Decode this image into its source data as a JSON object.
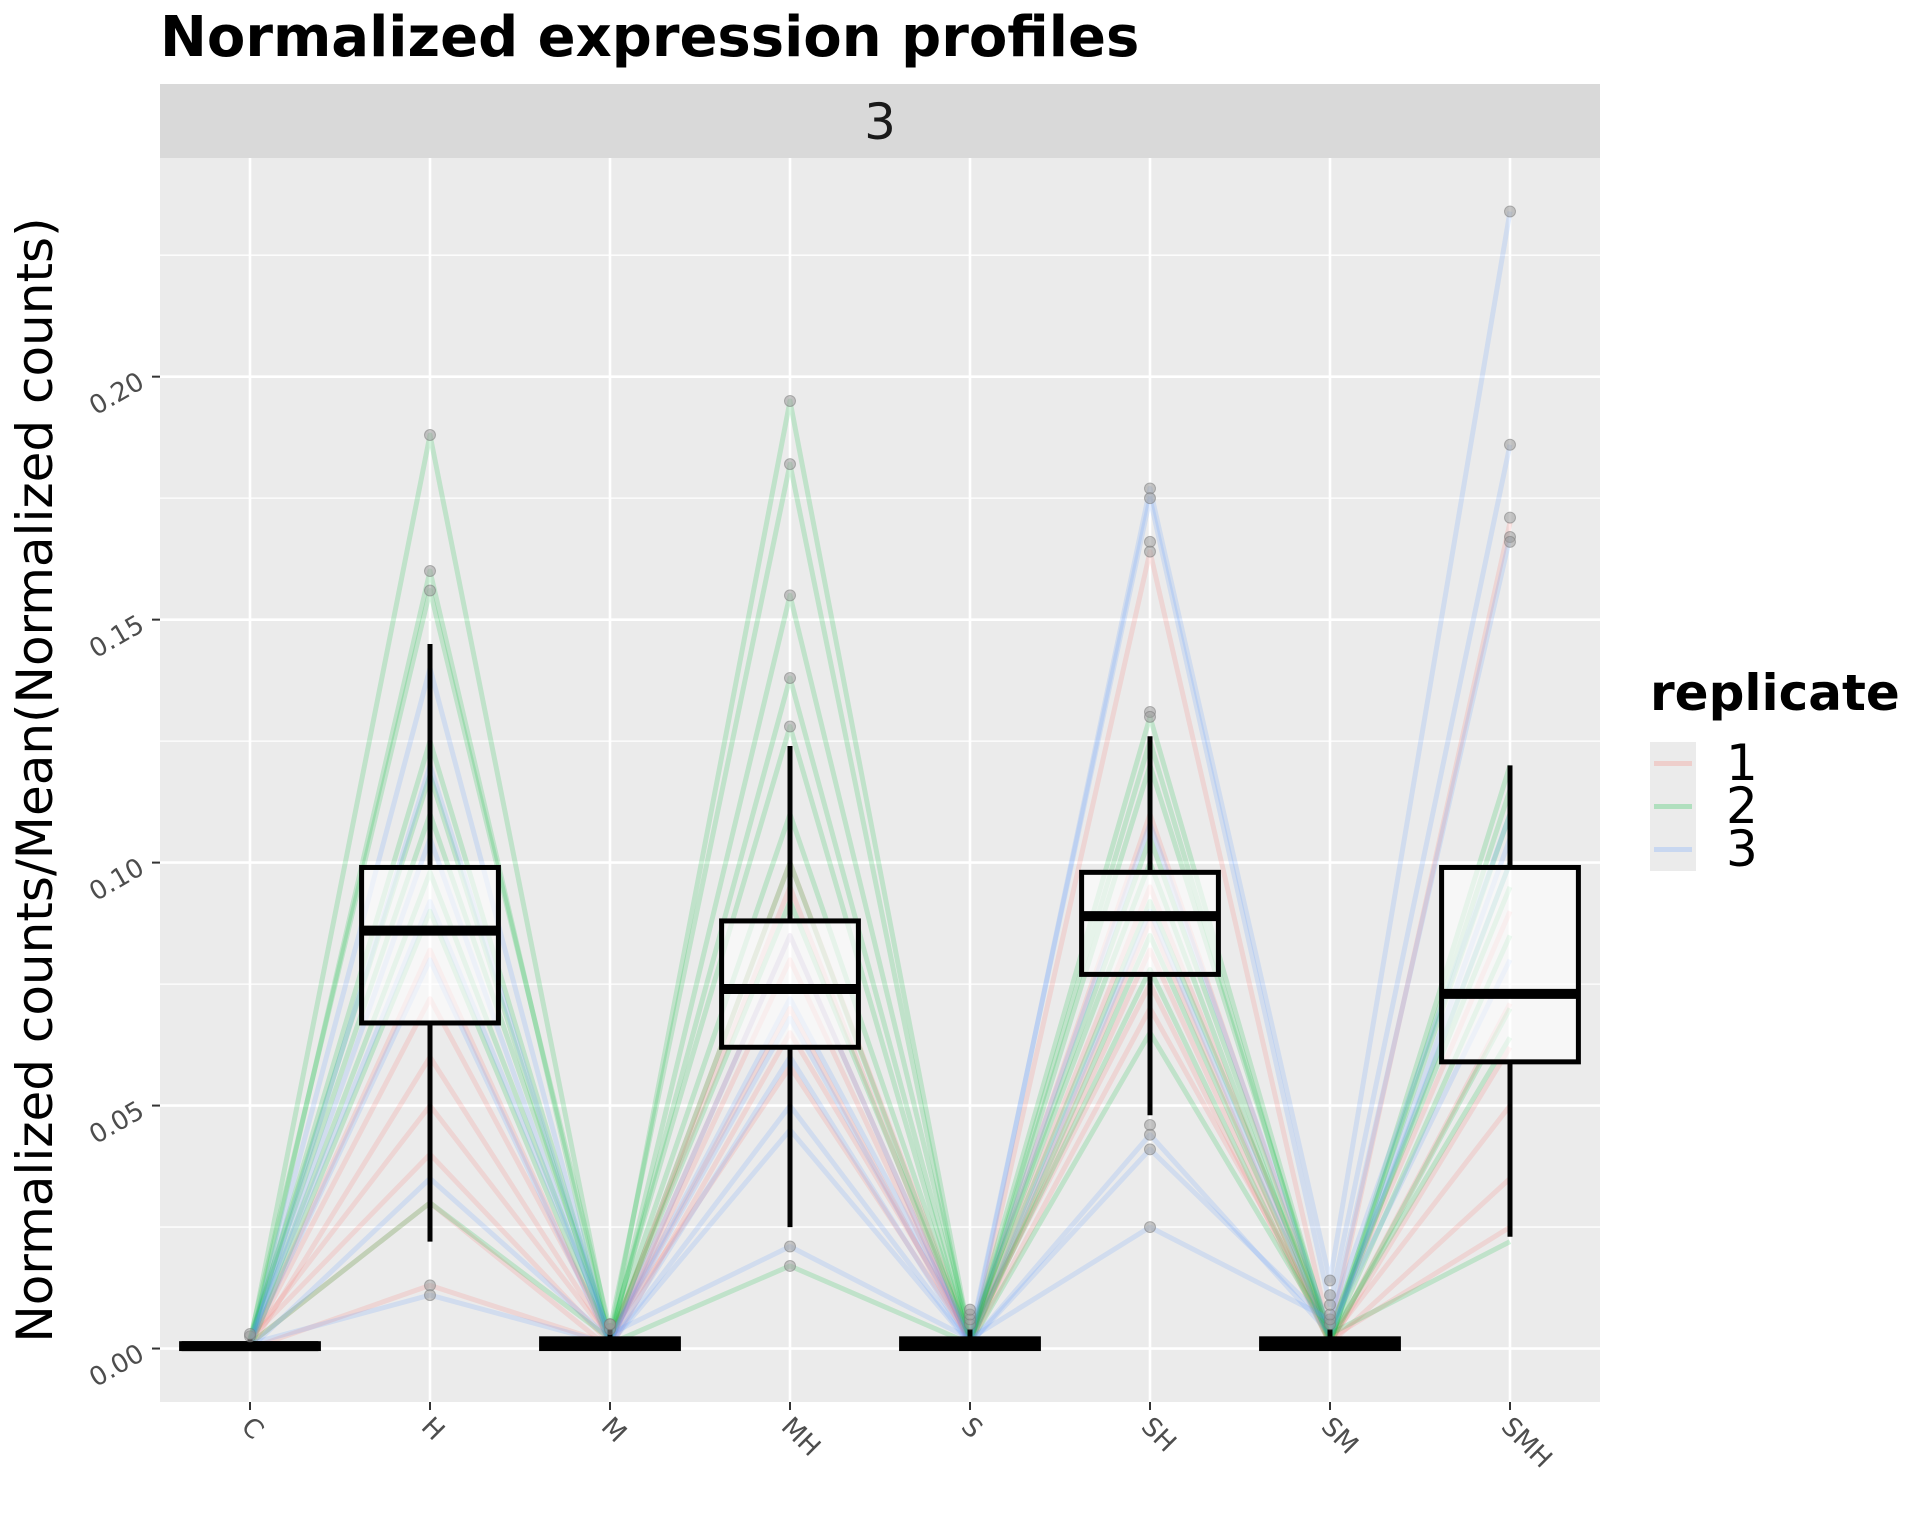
{
  "chart_data": {
    "type": "line",
    "title": "Normalized expression profiles",
    "facet_label": "3",
    "xlabel": "",
    "ylabel": "Normalized counts/Mean(Normalized counts)",
    "categories": [
      "C",
      "H",
      "M",
      "MH",
      "S",
      "SH",
      "SM",
      "SMH"
    ],
    "ylim": [
      -0.011,
      0.245
    ],
    "yticks": [
      0.0,
      0.05,
      0.1,
      0.15,
      0.2
    ],
    "ytick_labels": [
      "0.00",
      "0.05",
      "0.10",
      "0.15",
      "0.20"
    ],
    "grid": true,
    "legend": {
      "title": "replicate",
      "position": "right",
      "entries": [
        {
          "label": "1",
          "color": "#F8766D"
        },
        {
          "label": "2",
          "color": "#00BA38"
        },
        {
          "label": "3",
          "color": "#619CFF"
        }
      ]
    },
    "boxplots": [
      {
        "category": "C",
        "q1": 0.0,
        "median": 0.0005,
        "q3": 0.001,
        "whisker_low": 0.0,
        "whisker_high": 0.002,
        "outliers": [
          0.0025,
          0.003
        ]
      },
      {
        "category": "H",
        "q1": 0.067,
        "median": 0.086,
        "q3": 0.099,
        "whisker_low": 0.022,
        "whisker_high": 0.145,
        "outliers": [
          0.188,
          0.16,
          0.156,
          0.013,
          0.011
        ]
      },
      {
        "category": "M",
        "q1": 0.0,
        "median": 0.001,
        "q3": 0.002,
        "whisker_low": 0.0,
        "whisker_high": 0.004,
        "outliers": [
          0.004,
          0.005,
          0.005
        ]
      },
      {
        "category": "MH",
        "q1": 0.062,
        "median": 0.074,
        "q3": 0.088,
        "whisker_low": 0.025,
        "whisker_high": 0.124,
        "outliers": [
          0.195,
          0.182,
          0.155,
          0.138,
          0.128,
          0.021,
          0.017
        ]
      },
      {
        "category": "S",
        "q1": 0.0,
        "median": 0.001,
        "q3": 0.002,
        "whisker_low": 0.0,
        "whisker_high": 0.004,
        "outliers": [
          0.005,
          0.006,
          0.007,
          0.008
        ]
      },
      {
        "category": "SH",
        "q1": 0.077,
        "median": 0.089,
        "q3": 0.098,
        "whisker_low": 0.048,
        "whisker_high": 0.126,
        "outliers": [
          0.177,
          0.175,
          0.166,
          0.164,
          0.131,
          0.13,
          0.046,
          0.044,
          0.041,
          0.025
        ]
      },
      {
        "category": "SM",
        "q1": 0.0,
        "median": 0.001,
        "q3": 0.002,
        "whisker_low": 0.0,
        "whisker_high": 0.004,
        "outliers": [
          0.005,
          0.006,
          0.007,
          0.009,
          0.011,
          0.014
        ]
      },
      {
        "category": "SMH",
        "q1": 0.059,
        "median": 0.073,
        "q3": 0.099,
        "whisker_low": 0.023,
        "whisker_high": 0.12,
        "outliers": [
          0.234,
          0.186,
          0.171,
          0.167,
          0.166
        ]
      }
    ],
    "series": [
      {
        "name": "1",
        "color": "#F8766D",
        "values": [
          0.001,
          0.082,
          0.001,
          0.08,
          0.001,
          0.088,
          0.001,
          0.071
        ]
      },
      {
        "name": "1",
        "color": "#F8766D",
        "values": [
          0.0,
          0.06,
          0.002,
          0.095,
          0.0,
          0.164,
          0.003,
          0.17
        ]
      },
      {
        "name": "1",
        "color": "#F8766D",
        "values": [
          0.002,
          0.04,
          0.001,
          0.1,
          0.002,
          0.11,
          0.002,
          0.05
        ]
      },
      {
        "name": "1",
        "color": "#F8766D",
        "values": [
          0.001,
          0.03,
          0.0,
          0.065,
          0.003,
          0.075,
          0.001,
          0.035
        ]
      },
      {
        "name": "1",
        "color": "#F8766D",
        "values": [
          0.0,
          0.013,
          0.001,
          0.085,
          0.001,
          0.07,
          0.004,
          0.09
        ]
      },
      {
        "name": "1",
        "color": "#F8766D",
        "values": [
          0.001,
          0.072,
          0.003,
          0.058,
          0.002,
          0.095,
          0.002,
          0.025
        ]
      },
      {
        "name": "1",
        "color": "#F8766D",
        "values": [
          0.002,
          0.05,
          0.002,
          0.07,
          0.001,
          0.082,
          0.001,
          0.062
        ]
      },
      {
        "name": "2",
        "color": "#00BA38",
        "values": [
          0.001,
          0.188,
          0.002,
          0.195,
          0.002,
          0.13,
          0.002,
          0.1
        ]
      },
      {
        "name": "2",
        "color": "#00BA38",
        "values": [
          0.002,
          0.156,
          0.004,
          0.182,
          0.001,
          0.12,
          0.003,
          0.11
        ]
      },
      {
        "name": "2",
        "color": "#00BA38",
        "values": [
          0.0,
          0.16,
          0.001,
          0.155,
          0.003,
          0.1,
          0.001,
          0.12
        ]
      },
      {
        "name": "2",
        "color": "#00BA38",
        "values": [
          0.001,
          0.125,
          0.002,
          0.138,
          0.002,
          0.092,
          0.004,
          0.095
        ]
      },
      {
        "name": "2",
        "color": "#00BA38",
        "values": [
          0.002,
          0.11,
          0.003,
          0.128,
          0.001,
          0.085,
          0.002,
          0.085
        ]
      },
      {
        "name": "2",
        "color": "#00BA38",
        "values": [
          0.001,
          0.098,
          0.002,
          0.11,
          0.002,
          0.078,
          0.001,
          0.07
        ]
      },
      {
        "name": "2",
        "color": "#00BA38",
        "values": [
          0.0,
          0.09,
          0.001,
          0.017,
          0.001,
          0.065,
          0.003,
          0.022
        ]
      },
      {
        "name": "2",
        "color": "#00BA38",
        "values": [
          0.001,
          0.03,
          0.002,
          0.092,
          0.002,
          0.105,
          0.002,
          0.064
        ]
      },
      {
        "name": "2",
        "color": "#00BA38",
        "values": [
          0.002,
          0.118,
          0.001,
          0.1,
          0.001,
          0.125,
          0.001,
          0.115
        ]
      },
      {
        "name": "3",
        "color": "#619CFF",
        "values": [
          0.001,
          0.14,
          0.001,
          0.05,
          0.001,
          0.177,
          0.014,
          0.234
        ]
      },
      {
        "name": "3",
        "color": "#619CFF",
        "values": [
          0.0,
          0.12,
          0.002,
          0.068,
          0.002,
          0.175,
          0.009,
          0.186
        ]
      },
      {
        "name": "3",
        "color": "#619CFF",
        "values": [
          0.001,
          0.011,
          0.001,
          0.045,
          0.001,
          0.041,
          0.005,
          0.167
        ]
      },
      {
        "name": "3",
        "color": "#619CFF",
        "values": [
          0.002,
          0.092,
          0.003,
          0.021,
          0.002,
          0.025,
          0.006,
          0.11
        ]
      },
      {
        "name": "3",
        "color": "#619CFF",
        "values": [
          0.001,
          0.08,
          0.001,
          0.06,
          0.001,
          0.044,
          0.003,
          0.1
        ]
      },
      {
        "name": "3",
        "color": "#619CFF",
        "values": [
          0.0,
          0.035,
          0.002,
          0.072,
          0.003,
          0.108,
          0.004,
          0.08
        ]
      },
      {
        "name": "3",
        "color": "#619CFF",
        "values": [
          0.001,
          0.105,
          0.001,
          0.085,
          0.001,
          0.09,
          0.002,
          0.105
        ]
      }
    ]
  }
}
